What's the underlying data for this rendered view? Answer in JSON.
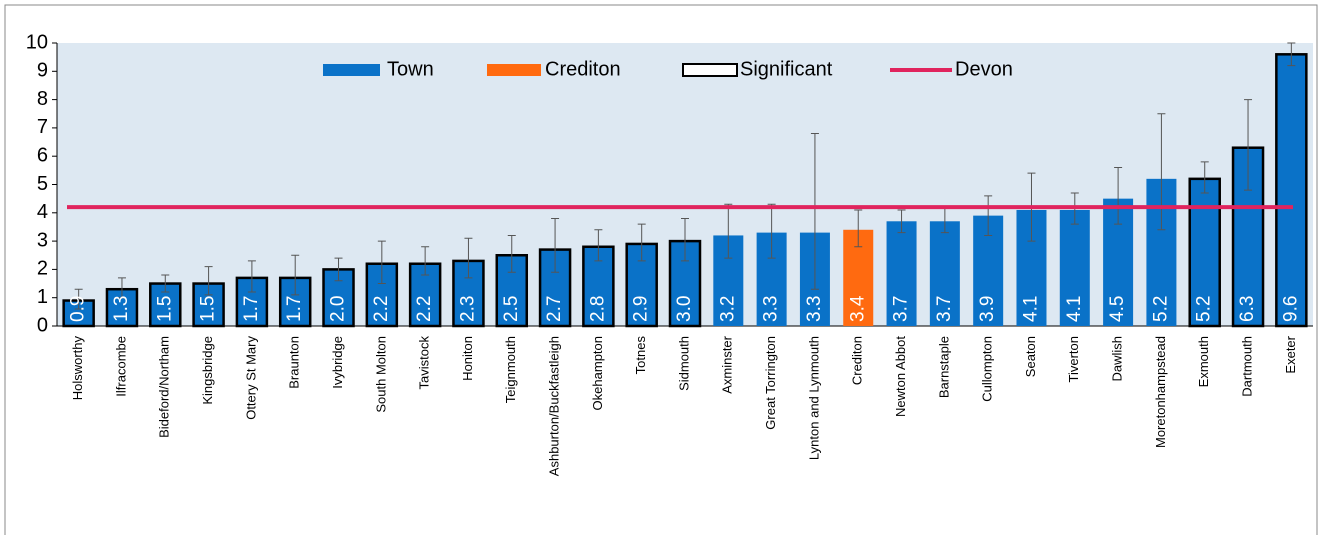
{
  "chart_data": {
    "type": "bar",
    "categories": [
      "Holsworthy",
      "Ilfracombe",
      "Bideford/Northam",
      "Kingsbridge",
      "Ottery St Mary",
      "Braunton",
      "Ivybridge",
      "South Molton",
      "Tavistock",
      "Honiton",
      "Teignmouth",
      "Ashburton/Buckfastleigh",
      "Okehampton",
      "Totnes",
      "Sidmouth",
      "Axminster",
      "Great Torrington",
      "Lynton and Lynmouth",
      "Crediton",
      "Newton Abbot",
      "Barnstaple",
      "Cullompton",
      "Seaton",
      "Tiverton",
      "Dawlish",
      "Moretonhampstead",
      "Exmouth",
      "Dartmouth",
      "Exeter"
    ],
    "values": [
      0.9,
      1.3,
      1.5,
      1.5,
      1.7,
      1.7,
      2.0,
      2.2,
      2.2,
      2.3,
      2.5,
      2.7,
      2.8,
      2.9,
      3.0,
      3.2,
      3.3,
      3.3,
      3.4,
      3.7,
      3.7,
      3.9,
      4.1,
      4.1,
      4.5,
      5.2,
      5.2,
      6.3,
      9.6
    ],
    "value_labels": [
      "0.9",
      "1.3",
      "1.5",
      "1.5",
      "1.7",
      "1.7",
      "2.0",
      "2.2",
      "2.2",
      "2.3",
      "2.5",
      "2.7",
      "2.8",
      "2.9",
      "3.0",
      "3.2",
      "3.3",
      "3.3",
      "3.4",
      "3.7",
      "3.7",
      "3.9",
      "4.1",
      "4.1",
      "4.5",
      "5.2",
      "5.2",
      "6.3",
      "9.6"
    ],
    "error_low": [
      0.6,
      1.0,
      1.2,
      1.1,
      1.2,
      1.1,
      1.6,
      1.5,
      1.8,
      1.7,
      1.9,
      1.9,
      2.3,
      2.3,
      2.3,
      2.4,
      2.4,
      1.3,
      2.8,
      3.3,
      3.3,
      3.2,
      3.0,
      3.6,
      3.6,
      3.4,
      4.7,
      4.8,
      9.2
    ],
    "error_high": [
      1.3,
      1.7,
      1.8,
      2.1,
      2.3,
      2.5,
      2.4,
      3.0,
      2.8,
      3.1,
      3.2,
      3.8,
      3.4,
      3.6,
      3.8,
      4.3,
      4.3,
      6.8,
      4.1,
      4.1,
      4.2,
      4.6,
      5.4,
      4.7,
      5.6,
      7.5,
      5.8,
      8.0,
      10.0
    ],
    "significant": [
      true,
      true,
      true,
      true,
      true,
      true,
      true,
      true,
      true,
      true,
      true,
      true,
      true,
      true,
      true,
      false,
      false,
      false,
      false,
      false,
      false,
      false,
      false,
      false,
      false,
      false,
      true,
      true,
      true
    ],
    "legend": [
      {
        "name": "Town",
        "color": "#0a72c8"
      },
      {
        "name": "Crediton",
        "color": "#ff6a10"
      },
      {
        "name": "Significant"
      },
      {
        "name": "Devon",
        "color": "#e0245e"
      }
    ],
    "reference": {
      "name": "Devon",
      "value": 4.2
    },
    "ylim": [
      0,
      10
    ],
    "yticks": [
      0,
      1,
      2,
      3,
      4,
      5,
      6,
      7,
      8,
      9,
      10
    ]
  }
}
